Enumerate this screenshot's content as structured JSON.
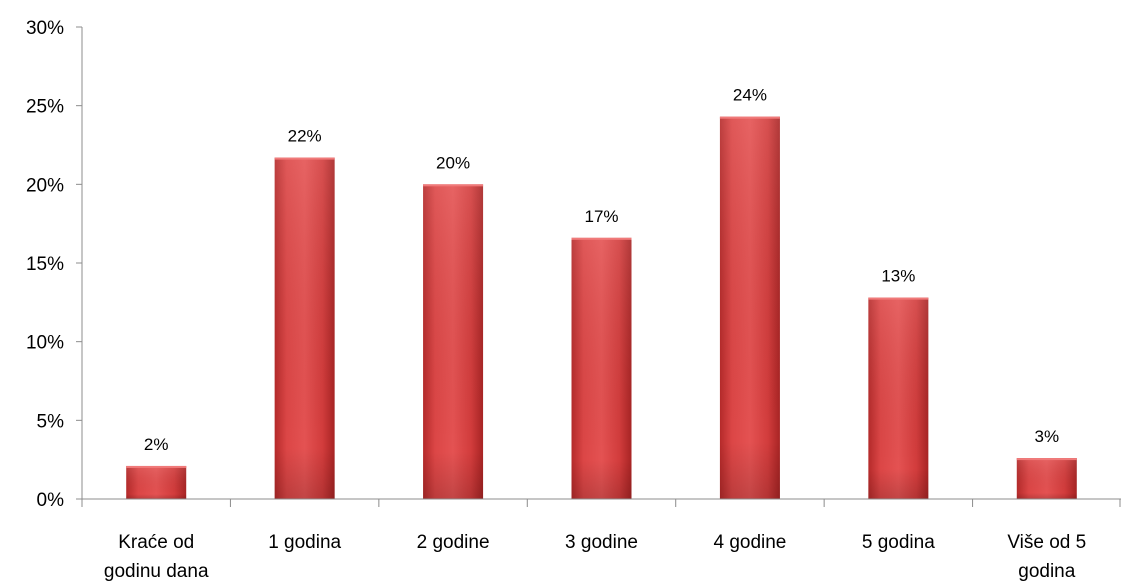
{
  "chart_data": {
    "type": "bar",
    "title": "",
    "xlabel": "",
    "ylabel": "",
    "categories": [
      [
        "Kraće od",
        "godinu dana"
      ],
      [
        "1 godina"
      ],
      [
        "2 godine"
      ],
      [
        "3 godine"
      ],
      [
        "4 godine"
      ],
      [
        "5 godina"
      ],
      [
        "Više od 5",
        "godina"
      ]
    ],
    "values": [
      2.1,
      21.7,
      20.0,
      16.6,
      24.3,
      12.8,
      2.6
    ],
    "data_labels": [
      "2%",
      "22%",
      "20%",
      "17%",
      "24%",
      "13%",
      "3%"
    ],
    "ylim": [
      0,
      30
    ],
    "yticks": [
      0,
      5,
      10,
      15,
      20,
      25,
      30
    ],
    "ytick_labels": [
      "0%",
      "5%",
      "10%",
      "15%",
      "20%",
      "25%",
      "30%"
    ],
    "grid": false,
    "legend": "none",
    "bar_color": "#d43c3c",
    "axis_color": "#8c8c8c"
  }
}
